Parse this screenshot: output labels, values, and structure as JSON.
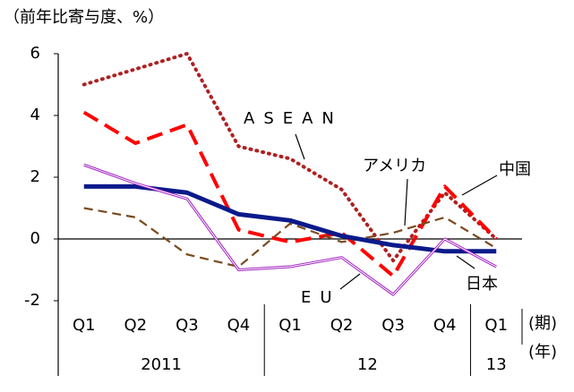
{
  "chart_data": {
    "type": "line",
    "title": "（前年比寄与度、%）",
    "categories": [
      "Q1",
      "Q2",
      "Q3",
      "Q4",
      "Q1",
      "Q2",
      "Q3",
      "Q4",
      "Q1"
    ],
    "years": [
      "2011",
      null,
      null,
      null,
      "12",
      null,
      null,
      null,
      "13"
    ],
    "period_label": "(期)",
    "year_label": "(年)",
    "ylim": [
      -2,
      6
    ],
    "yticks": [
      -2,
      0,
      2,
      4,
      6
    ],
    "series": [
      {
        "name": "ASEAN",
        "color": "#b02020",
        "style": "dotted",
        "values": [
          5.0,
          5.5,
          6.0,
          3.0,
          2.6,
          1.6,
          -0.7,
          1.5,
          0.0
        ]
      },
      {
        "name": "中国",
        "color": "#ff0000",
        "style": "dashed",
        "values": [
          4.1,
          3.1,
          3.7,
          0.3,
          -0.1,
          0.2,
          -1.2,
          1.7,
          0.0
        ]
      },
      {
        "name": "アメリカ",
        "color": "#7a4a1e",
        "style": "dashed-thin",
        "values": [
          1.0,
          0.7,
          -0.5,
          -0.9,
          0.5,
          -0.1,
          0.2,
          0.7,
          -0.3
        ]
      },
      {
        "name": "日本",
        "color": "#0a1a8a",
        "style": "thick",
        "values": [
          1.7,
          1.7,
          1.5,
          0.8,
          0.6,
          0.1,
          -0.2,
          -0.4,
          -0.4
        ]
      },
      {
        "name": "EU",
        "color": "#a020c0",
        "style": "double",
        "values": [
          2.4,
          1.8,
          1.3,
          -1.0,
          -0.9,
          -0.6,
          -1.8,
          0.0,
          -0.9
        ]
      }
    ]
  }
}
